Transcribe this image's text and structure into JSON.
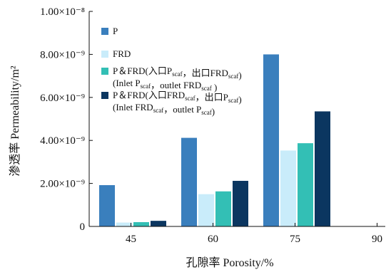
{
  "chart_data": {
    "type": "bar",
    "xlabel": "孔隙率 Porosity/%",
    "ylabel": "渗透率 Permeability/m²",
    "categories": [
      "45",
      "60",
      "75",
      "90"
    ],
    "ylim": [
      0,
      1e-08
    ],
    "yticks": [
      {
        "value": 0,
        "label": "0"
      },
      {
        "value": 2e-09,
        "label": "2.00×10⁻⁹"
      },
      {
        "value": 4e-09,
        "label": "4.00×10⁻⁹"
      },
      {
        "value": 6e-09,
        "label": "6.00×10⁻⁹"
      },
      {
        "value": 8e-09,
        "label": "8.00×10⁻⁹"
      },
      {
        "value": 1e-08,
        "label": "1.00×10⁻⁸"
      }
    ],
    "series": [
      {
        "name": "P",
        "color": "#3a7fbd",
        "values": [
          1.92e-09,
          4.12e-09,
          8e-09,
          null
        ]
      },
      {
        "name": "FRD",
        "color": "#c9ecfa",
        "values": [
          1.8e-10,
          1.5e-09,
          3.53e-09,
          null
        ]
      },
      {
        "name": "P＆FRD(入口Pscaf，出口FRDscaf)",
        "color": "#33bfb5",
        "values": [
          2e-10,
          1.63e-09,
          3.87e-09,
          null
        ]
      },
      {
        "name": "P＆FRD(入口FRDscaf，出口Pscaf)",
        "color": "#0b3660",
        "values": [
          2.6e-10,
          2.12e-09,
          5.35e-09,
          null
        ]
      }
    ],
    "legend": {
      "position": "top-left",
      "entries": [
        {
          "color": "#3a7fbd",
          "lines": [
            [
              {
                "t": "P"
              }
            ]
          ]
        },
        {
          "color": "#c9ecfa",
          "lines": [
            [
              {
                "t": "FRD"
              }
            ]
          ]
        },
        {
          "color": "#33bfb5",
          "lines": [
            [
              {
                "t": "P＆FRD(入口P"
              },
              {
                "t": "scaf",
                "sub": true
              },
              {
                "t": "，出口FRD"
              },
              {
                "t": "scaf",
                "sub": true
              },
              {
                "t": ")"
              }
            ],
            [
              {
                "t": "(Inlet P"
              },
              {
                "t": "scaf",
                "sub": true
              },
              {
                "t": "，outlet FRD"
              },
              {
                "t": "scaf",
                "sub": true
              },
              {
                "t": " )"
              }
            ]
          ]
        },
        {
          "color": "#0b3660",
          "lines": [
            [
              {
                "t": "P＆FRD(入口FRD"
              },
              {
                "t": "scaf",
                "sub": true
              },
              {
                "t": "，出口P"
              },
              {
                "t": "scaf",
                "sub": true
              },
              {
                "t": ")"
              }
            ],
            [
              {
                "t": "(Inlet FRD"
              },
              {
                "t": "scaf",
                "sub": true
              },
              {
                "t": "，outlet P"
              },
              {
                "t": "scaf",
                "sub": true
              },
              {
                "t": ")"
              }
            ]
          ]
        }
      ]
    },
    "grid": false
  }
}
